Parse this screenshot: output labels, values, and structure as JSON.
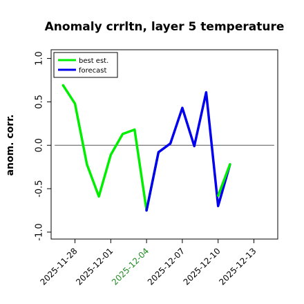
{
  "chart_data": {
    "type": "line",
    "title": "Anomaly crrltn, layer 5 temperature",
    "xlabel": "",
    "ylabel": "anom. corr.",
    "ylim": [
      -1.0,
      1.0
    ],
    "yticks": [
      "-1.0",
      "-0.5",
      "0.0",
      "0.5",
      "1.0"
    ],
    "ytick_values": [
      -1.0,
      -0.5,
      0.0,
      0.5,
      1.0
    ],
    "x_ticks": [
      {
        "label": "2025-11-28",
        "day": 0,
        "color": "#000000"
      },
      {
        "label": "2025-12-01",
        "day": 3,
        "color": "#000000"
      },
      {
        "label": "2025-12-04",
        "day": 6,
        "color": "#228B22"
      },
      {
        "label": "2025-12-07",
        "day": 9,
        "color": "#000000"
      },
      {
        "label": "2025-12-10",
        "day": 12,
        "color": "#000000"
      },
      {
        "label": "2025-12-13",
        "day": 15,
        "color": "#000000"
      }
    ],
    "xlim_days": [
      -2,
      17
    ],
    "reference_line": 0.0,
    "grid": false,
    "legend_position": "top-left",
    "series": [
      {
        "name": "best est.",
        "color": "#00ee00",
        "x": [
          "2025-11-27",
          "2025-11-28",
          "2025-11-29",
          "2025-11-30",
          "2025-12-01",
          "2025-12-02",
          "2025-12-03",
          "2025-12-04",
          "2025-12-05"
        ],
        "values": [
          0.69,
          0.48,
          -0.22,
          -0.59,
          -0.11,
          0.13,
          0.18,
          -0.75,
          -0.08
        ]
      },
      {
        "name": "forecast",
        "color": "#0000ee",
        "x": [
          "2025-12-04",
          "2025-12-05",
          "2025-12-06",
          "2025-12-07",
          "2025-12-08",
          "2025-12-09",
          "2025-12-10",
          "2025-12-11"
        ],
        "values": [
          -0.75,
          -0.08,
          0.02,
          0.43,
          -0.01,
          0.61,
          -0.7,
          -0.22
        ]
      },
      {
        "name": "",
        "color": "#00ee00",
        "x": [
          "2025-12-10",
          "2025-12-11"
        ],
        "values": [
          -0.58,
          -0.22
        ]
      }
    ]
  }
}
